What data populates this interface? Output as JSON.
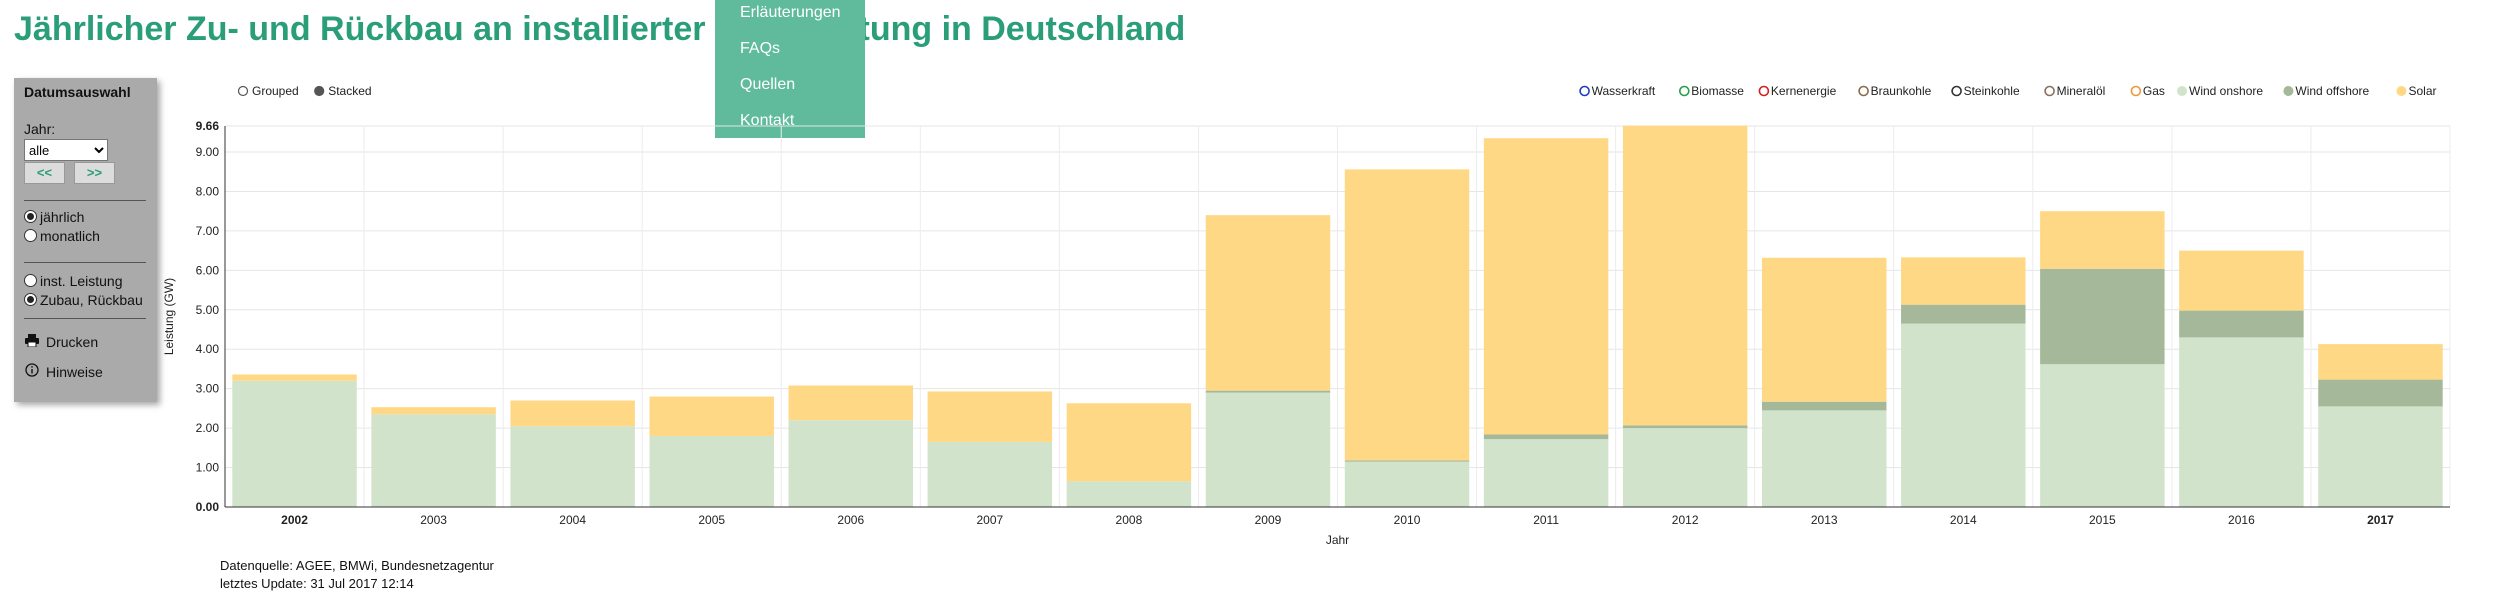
{
  "header": {
    "title": "Jährlicher Zu- und Rückbau an installierter Nettoleistung in Deutschland"
  },
  "menu": {
    "items": [
      "Erläuterungen",
      "FAQs",
      "Quellen",
      "Kontakt"
    ]
  },
  "sidebar": {
    "title": "Datumsauswahl",
    "year_label": "Jahr:",
    "year_value": "alle",
    "prev_label": "<<",
    "next_label": ">>",
    "interval_options": [
      {
        "label": "jährlich",
        "checked": true
      },
      {
        "label": "monatlich",
        "checked": false
      }
    ],
    "mode_options": [
      {
        "label": "inst. Leistung",
        "checked": false
      },
      {
        "label": "Zubau, Rückbau",
        "checked": true
      }
    ],
    "print_label": "Drucken",
    "info_label": "Hinweise"
  },
  "layout_toggle": [
    {
      "label": "Grouped",
      "checked": false
    },
    {
      "label": "Stacked",
      "checked": true
    }
  ],
  "legend": [
    {
      "label": "Wasserkraft",
      "color": "#1f3fbf",
      "style": "ring"
    },
    {
      "label": "Biomasse",
      "color": "#2a9d4a",
      "style": "ring"
    },
    {
      "label": "Kernenergie",
      "color": "#d62020",
      "style": "ring"
    },
    {
      "label": "Braunkohle",
      "color": "#8b6a4e",
      "style": "ring"
    },
    {
      "label": "Steinkohle",
      "color": "#333333",
      "style": "ring"
    },
    {
      "label": "Mineralöl",
      "color": "#8a7060",
      "style": "ring"
    },
    {
      "label": "Gas",
      "color": "#e89a3c",
      "style": "ring"
    },
    {
      "label": "Wind onshore",
      "color": "#d1e3cb",
      "style": "filled"
    },
    {
      "label": "Wind offshore",
      "color": "#a5b99a",
      "style": "filled"
    },
    {
      "label": "Solar",
      "color": "#ffd885",
      "style": "filled"
    }
  ],
  "chart_data": {
    "type": "bar",
    "stacked": true,
    "title": "Jährlicher Zu- und Rückbau an installierter Nettoleistung in Deutschland",
    "xlabel": "Jahr",
    "ylabel": "Leistung (GW)",
    "ylim": [
      0,
      9.66
    ],
    "yticks": [
      0,
      1,
      2,
      3,
      4,
      5,
      6,
      7,
      8,
      9
    ],
    "ytick_labels": [
      "0.00",
      "1.00",
      "2.00",
      "3.00",
      "4.00",
      "5.00",
      "6.00",
      "7.00",
      "8.00",
      "9.00"
    ],
    "ymax_label": "9.66",
    "grid": true,
    "categories": [
      "2002",
      "2003",
      "2004",
      "2005",
      "2006",
      "2007",
      "2008",
      "2009",
      "2010",
      "2011",
      "2012",
      "2013",
      "2014",
      "2015",
      "2016",
      "2017"
    ],
    "bold_categories": [
      "2002",
      "2017"
    ],
    "series": [
      {
        "name": "Wind onshore",
        "color": "#d1e3cb",
        "values": [
          3.2,
          2.35,
          2.05,
          1.8,
          2.2,
          1.65,
          0.65,
          2.9,
          1.15,
          1.72,
          2.0,
          2.45,
          4.65,
          3.62,
          4.3,
          2.55
        ]
      },
      {
        "name": "Wind offshore",
        "color": "#a5b99a",
        "values": [
          0,
          0,
          0,
          0,
          0,
          0,
          0,
          0.05,
          0.03,
          0.12,
          0.07,
          0.22,
          0.48,
          2.42,
          0.68,
          0.68
        ]
      },
      {
        "name": "Solar",
        "color": "#ffd885",
        "values": [
          0.16,
          0.18,
          0.65,
          1.0,
          0.88,
          1.28,
          1.98,
          4.45,
          7.38,
          7.51,
          7.6,
          3.65,
          1.2,
          1.46,
          1.52,
          0.9
        ]
      }
    ]
  },
  "footer": {
    "source": "Datenquelle: AGEE, BMWi, Bundesnetzagentur",
    "updated": "letztes Update: 31 Jul 2017 12:14"
  }
}
